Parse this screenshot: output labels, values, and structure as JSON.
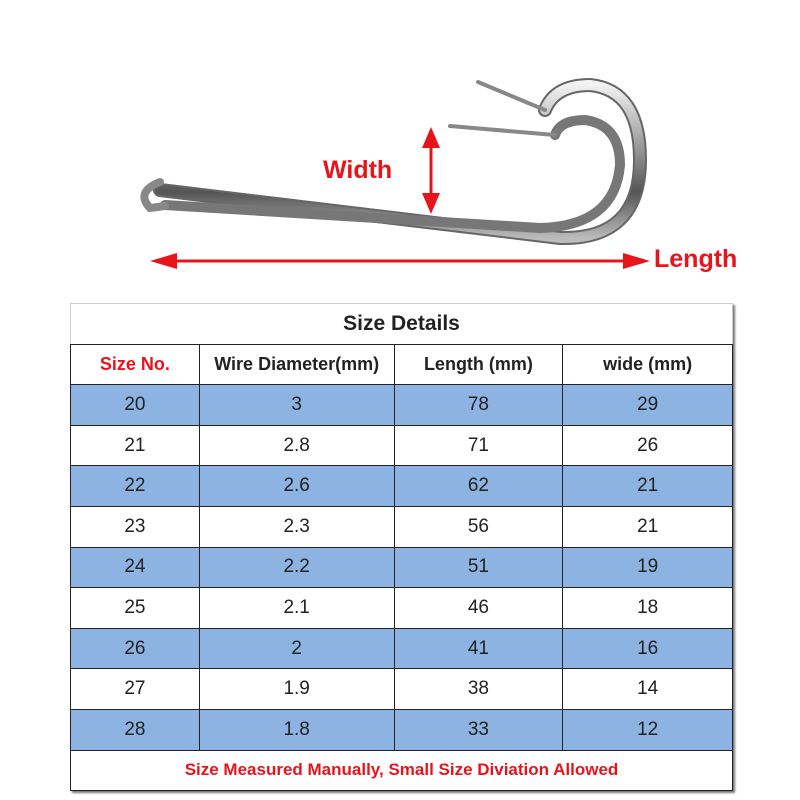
{
  "image": {
    "width_label": "Width",
    "length_label": "Length",
    "arrow_color": "#e8141b"
  },
  "table": {
    "title": "Size Details",
    "headers": [
      "Size No.",
      "Wire Diameter(mm)",
      "Length (mm)",
      "wide (mm)"
    ],
    "rows": [
      [
        "20",
        "3",
        "78",
        "29"
      ],
      [
        "21",
        "2.8",
        "71",
        "26"
      ],
      [
        "22",
        "2.6",
        "62",
        "21"
      ],
      [
        "23",
        "2.3",
        "56",
        "21"
      ],
      [
        "24",
        "2.2",
        "51",
        "19"
      ],
      [
        "25",
        "2.1",
        "46",
        "18"
      ],
      [
        "26",
        "2",
        "41",
        "16"
      ],
      [
        "27",
        "1.9",
        "38",
        "14"
      ],
      [
        "28",
        "1.8",
        "33",
        "12"
      ]
    ],
    "footer": "Size Measured Manually, Small Size Diviation Allowed",
    "stripe_color": "#8db3e2",
    "accent_color": "#e8141b"
  }
}
